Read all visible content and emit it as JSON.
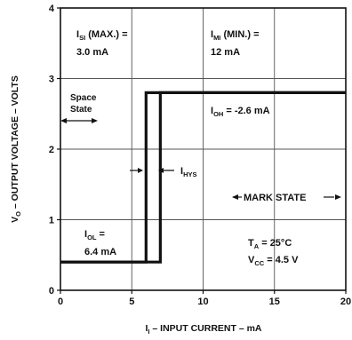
{
  "chart_data": {
    "type": "line",
    "xlabel": {
      "main": "I",
      "sub": "I",
      "rest": " – INPUT CURRENT – mA"
    },
    "ylabel": {
      "main": "V",
      "sub": "O",
      "rest": " – OUTPUT VOLTAGE – VOLTS"
    },
    "xlim": [
      0,
      20
    ],
    "ylim": [
      0,
      4
    ],
    "xticks": [
      0,
      5,
      10,
      15,
      20
    ],
    "yticks": [
      0,
      1,
      2,
      3,
      4
    ],
    "grid": true,
    "series": [
      {
        "x": [
          0,
          6,
          6,
          20
        ],
        "y": [
          0.4,
          0.4,
          2.8,
          2.8
        ]
      },
      {
        "x": [
          0,
          7,
          7,
          20
        ],
        "y": [
          0.4,
          0.4,
          2.8,
          2.8
        ]
      }
    ],
    "annotations": {
      "isi": {
        "main": "I",
        "sub": "SI",
        "rest": " (MAX.) =",
        "value": "3.0 mA"
      },
      "imi": {
        "main": "I",
        "sub": "MI",
        "rest": " (MIN.) =",
        "value": "12 mA"
      },
      "space_state": [
        "Space",
        "State"
      ],
      "ioh": {
        "main": "I",
        "sub": "OH",
        "rest": " = -2.6 mA"
      },
      "ihys": {
        "main": "I",
        "sub": "HYS"
      },
      "mark_state": "MARK STATE",
      "iol": {
        "main": "I",
        "sub": "OL",
        "rest": " =",
        "value": "6.4 mA"
      },
      "ta": {
        "main": "T",
        "sub": "A",
        "rest": " = 25°C"
      },
      "vcc": {
        "main": "V",
        "sub": "CC",
        "rest": " = 4.5 V"
      }
    }
  }
}
